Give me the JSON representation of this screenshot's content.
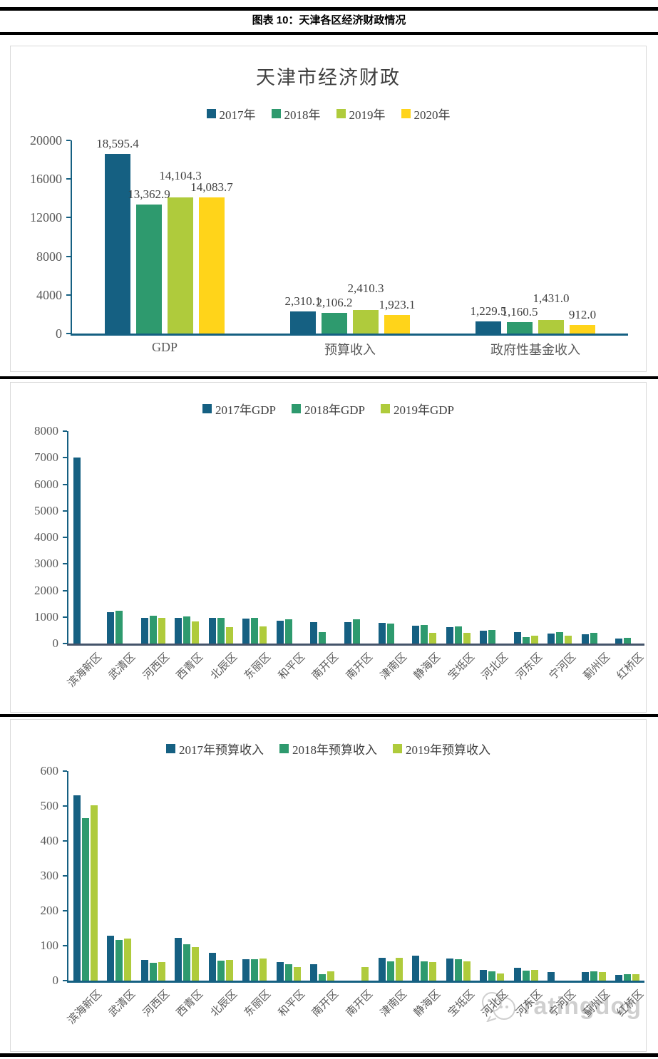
{
  "header": {
    "title": "图表 10：天津各区经济财政情况"
  },
  "watermark": {
    "text": "ratingdog"
  },
  "colors": {
    "y2017": "#156082",
    "y2018": "#2E9A6E",
    "y2019": "#AFCB3C",
    "y2020": "#FFD41A",
    "axis": "#156082",
    "baseline_dark": "#44546A",
    "tick_label": "#595959",
    "panel_border": "#D9D9D9"
  },
  "chart_data": [
    {
      "type": "bar",
      "title": "天津市经济财政",
      "legend_position": "top",
      "grid": false,
      "categories": [
        "GDP",
        "预算收入",
        "政府性基金收入"
      ],
      "series": [
        {
          "name": "2017年",
          "color_key": "y2017",
          "values": [
            18595.4,
            2310.1,
            1229.5
          ],
          "labels": [
            "18,595.4",
            "2,310.1",
            "1,229.5"
          ]
        },
        {
          "name": "2018年",
          "color_key": "y2018",
          "values": [
            13362.9,
            2106.2,
            1160.5
          ],
          "labels": [
            "13,362.9",
            "2,106.2",
            "1,160.5"
          ]
        },
        {
          "name": "2019年",
          "color_key": "y2019",
          "values": [
            14104.3,
            2410.3,
            1431.0
          ],
          "labels": [
            "14,104.3",
            "2,410.3",
            "1,431.0"
          ]
        },
        {
          "name": "2020年",
          "color_key": "y2020",
          "values": [
            14083.7,
            1923.1,
            912.0
          ],
          "labels": [
            "14,083.7",
            "1,923.1",
            "912.0"
          ]
        }
      ],
      "ylim": [
        0,
        20000
      ],
      "ytick_step": 4000,
      "ytick_labels": [
        "0",
        "4000",
        "8000",
        "12000",
        "16000",
        "20000"
      ]
    },
    {
      "type": "bar",
      "title": "",
      "legend_position": "top",
      "grid": false,
      "categories": [
        "滨海新区",
        "武清区",
        "河西区",
        "西青区",
        "北辰区",
        "东丽区",
        "和平区",
        "南开区",
        "南开区",
        "津南区",
        "静海区",
        "宝坻区",
        "河北区",
        "河东区",
        "宁河区",
        "蓟州区",
        "红桥区"
      ],
      "series": [
        {
          "name": "2017年GDP",
          "color_key": "y2017",
          "values": [
            7000,
            1190,
            970,
            970,
            965,
            935,
            850,
            810,
            810,
            770,
            660,
            620,
            470,
            420,
            380,
            360,
            200
          ]
        },
        {
          "name": "2018年GDP",
          "color_key": "y2018",
          "values": [
            null,
            1230,
            1035,
            1010,
            975,
            970,
            910,
            430,
            900,
            760,
            690,
            640,
            500,
            240,
            430,
            390,
            220
          ]
        },
        {
          "name": "2019年GDP",
          "color_key": "y2019",
          "values": [
            null,
            null,
            960,
            820,
            605,
            645,
            null,
            null,
            null,
            null,
            415,
            390,
            null,
            300,
            290,
            null,
            null
          ]
        }
      ],
      "ylim": [
        0,
        8000
      ],
      "ytick_step": 1000,
      "ytick_labels": [
        "0",
        "1000",
        "2000",
        "3000",
        "4000",
        "5000",
        "6000",
        "7000",
        "8000"
      ]
    },
    {
      "type": "bar",
      "title": "",
      "legend_position": "top",
      "grid": false,
      "categories": [
        "滨海新区",
        "武清区",
        "河西区",
        "西青区",
        "北辰区",
        "东丽区",
        "和平区",
        "南开区",
        "南开区",
        "津南区",
        "静海区",
        "宝坻区",
        "河北区",
        "河东区",
        "宁河区",
        "蓟州区",
        "红桥区"
      ],
      "series": [
        {
          "name": "2017年预算收入",
          "color_key": "y2017",
          "values": [
            530,
            128,
            60,
            122,
            80,
            61,
            53,
            46,
            null,
            66,
            71,
            64,
            30,
            37,
            25,
            24,
            16
          ]
        },
        {
          "name": "2018年预算收入",
          "color_key": "y2018",
          "values": [
            465,
            116,
            51,
            104,
            58,
            62,
            46,
            19,
            null,
            56,
            56,
            61,
            27,
            28,
            null,
            27,
            18
          ]
        },
        {
          "name": "2019年预算收入",
          "color_key": "y2019",
          "values": [
            503,
            120,
            53,
            95,
            59,
            64,
            38,
            26,
            39,
            65,
            54,
            56,
            21,
            30,
            null,
            24,
            18
          ]
        }
      ],
      "ylim": [
        0,
        600
      ],
      "ytick_step": 100,
      "ytick_labels": [
        "0",
        "100",
        "200",
        "300",
        "400",
        "500",
        "600"
      ]
    }
  ]
}
